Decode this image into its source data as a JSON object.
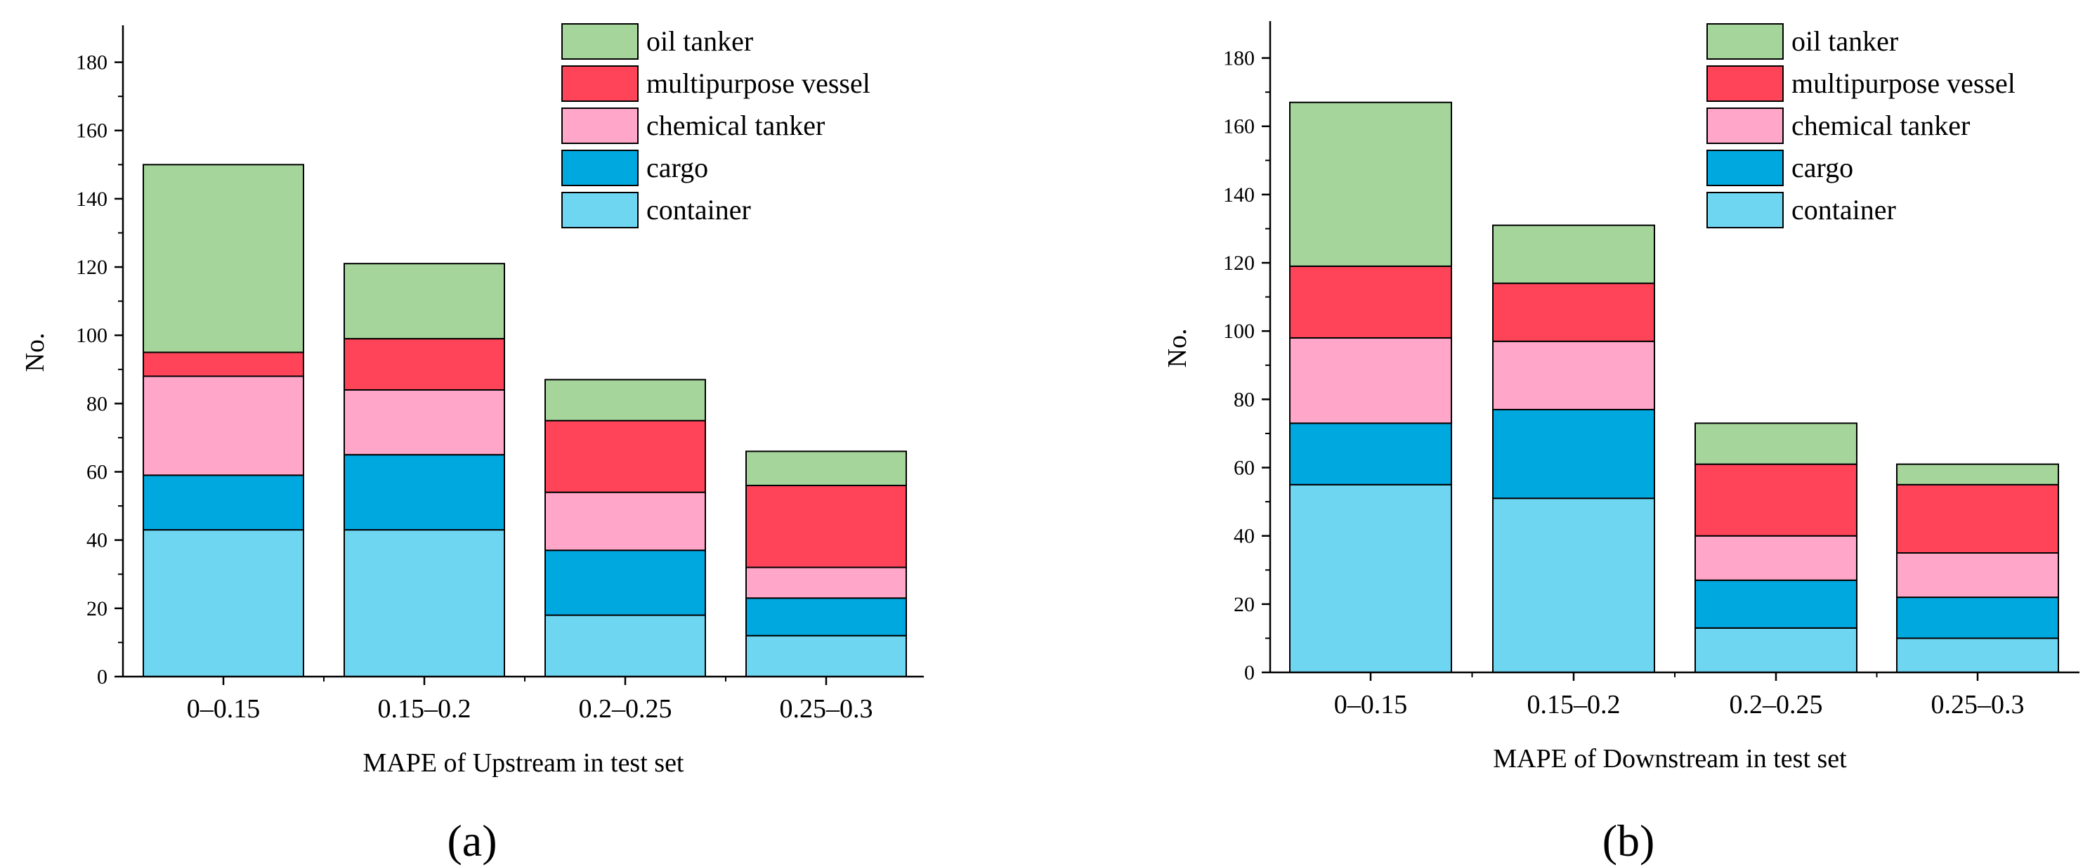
{
  "figure": {
    "panel_labels": [
      "(a)",
      "(b)"
    ]
  },
  "chart_data": [
    {
      "type": "bar",
      "stacked": true,
      "title": "",
      "panel_label": "(a)",
      "xlabel": "MAPE of Upstream in test set",
      "ylabel": "No.",
      "ylim": [
        0,
        190
      ],
      "yticks": [
        0,
        20,
        40,
        60,
        80,
        100,
        120,
        140,
        160,
        180
      ],
      "categories": [
        "0–0.15",
        "0.15–0.2",
        "0.2–0.25",
        "0.25–0.3"
      ],
      "series": [
        {
          "name": "container",
          "color": "#6FD6F2",
          "values": [
            43,
            43,
            18,
            12
          ]
        },
        {
          "name": "cargo",
          "color": "#00A8E0",
          "values": [
            16,
            22,
            19,
            11
          ]
        },
        {
          "name": "chemical tanker",
          "color": "#FFA6C9",
          "values": [
            29,
            19,
            17,
            9
          ]
        },
        {
          "name": "multipurpose vessel",
          "color": "#FF4459",
          "values": [
            7,
            15,
            21,
            24
          ]
        },
        {
          "name": "oil tanker",
          "color": "#A5D59A",
          "values": [
            55,
            22,
            12,
            10
          ]
        }
      ],
      "legend_order": [
        "oil tanker",
        "multipurpose vessel",
        "chemical tanker",
        "cargo",
        "container"
      ],
      "legend_position": "top-right"
    },
    {
      "type": "bar",
      "stacked": true,
      "title": "",
      "panel_label": "(b)",
      "xlabel": "MAPE of Downstream in test set",
      "ylabel": "No.",
      "ylim": [
        0,
        190
      ],
      "yticks": [
        0,
        20,
        40,
        60,
        80,
        100,
        120,
        140,
        160,
        180
      ],
      "categories": [
        "0–0.15",
        "0.15–0.2",
        "0.2–0.25",
        "0.25–0.3"
      ],
      "series": [
        {
          "name": "container",
          "color": "#6FD6F2",
          "values": [
            55,
            51,
            13,
            10
          ]
        },
        {
          "name": "cargo",
          "color": "#00A8E0",
          "values": [
            18,
            26,
            14,
            12
          ]
        },
        {
          "name": "chemical tanker",
          "color": "#FFA6C9",
          "values": [
            25,
            20,
            13,
            13
          ]
        },
        {
          "name": "multipurpose vessel",
          "color": "#FF4459",
          "values": [
            21,
            17,
            21,
            20
          ]
        },
        {
          "name": "oil tanker",
          "color": "#A5D59A",
          "values": [
            48,
            17,
            12,
            6
          ]
        }
      ],
      "legend_order": [
        "oil tanker",
        "multipurpose vessel",
        "chemical tanker",
        "cargo",
        "container"
      ],
      "legend_position": "top-right"
    }
  ]
}
